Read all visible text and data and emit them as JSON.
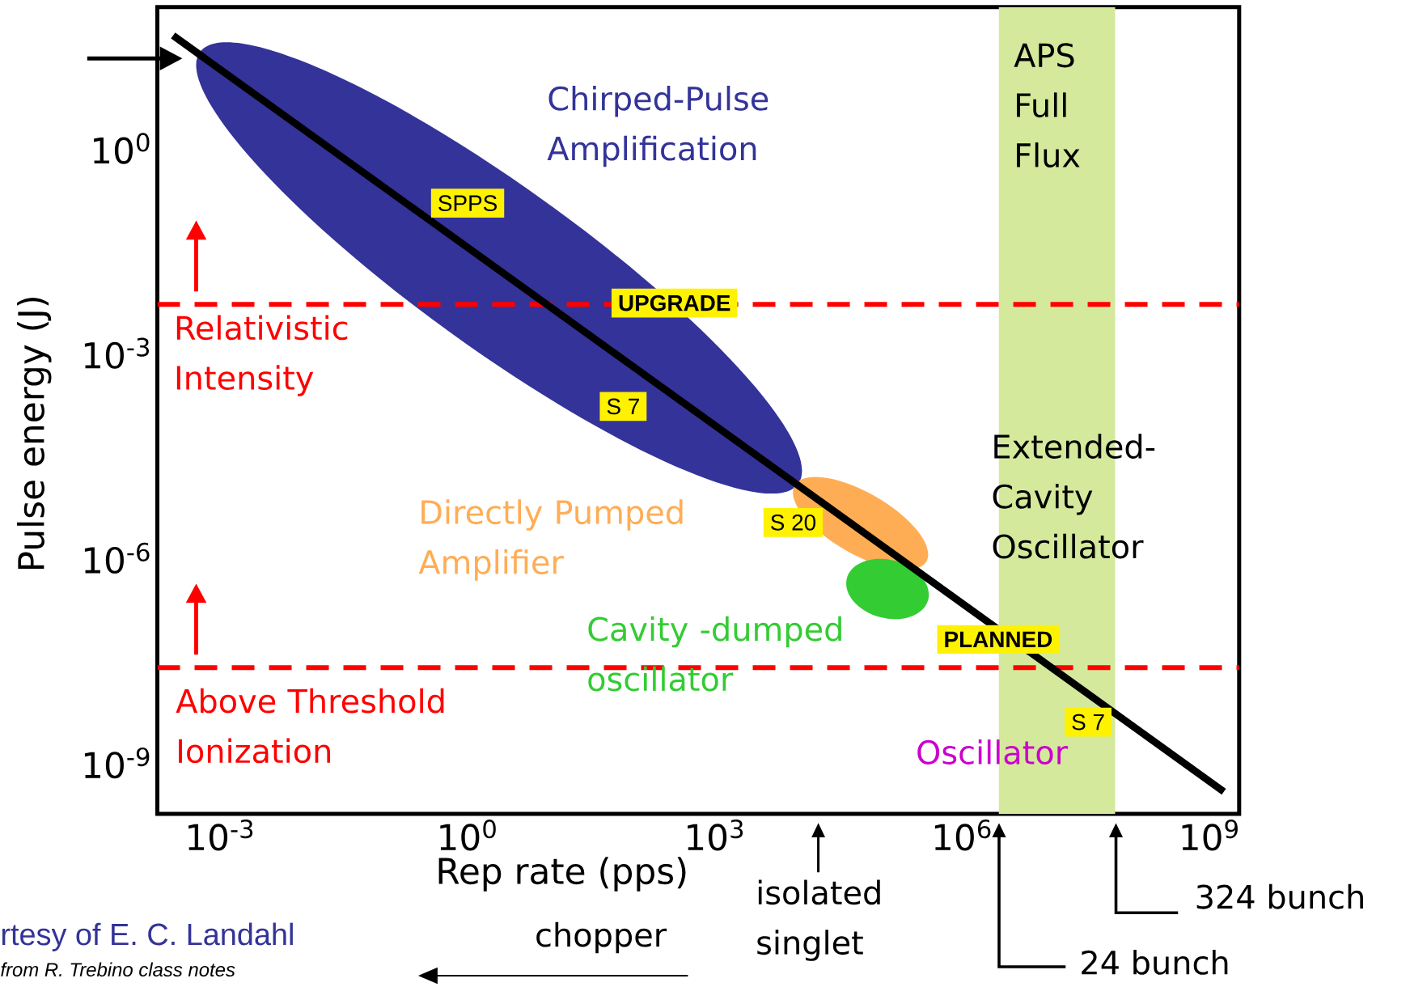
{
  "chart_data": {
    "type": "line",
    "xlabel": "Rep rate (pps)",
    "ylabel": "Pulse energy (J)",
    "xlim": [
      0.000174,
      2300000000
    ],
    "ylim": [
      1.8e-10,
      117
    ],
    "xticks": [
      {
        "value": 0.001,
        "label": "10$^{-3}$"
      },
      {
        "value": 1,
        "label": "10$^{0}$"
      },
      {
        "value": 1000,
        "label": "10$^{3}$"
      },
      {
        "value": 1000000,
        "label": "10$^{6}$"
      },
      {
        "value": 1000000000,
        "label": "10$^{9}$"
      }
    ],
    "yticks": [
      {
        "value": 1,
        "label": "10$^{0}$"
      },
      {
        "value": 0.001,
        "label": "10$^{-3}$"
      },
      {
        "value": 1e-06,
        "label": "10$^{-6}$"
      },
      {
        "value": 1e-09,
        "label": "10$^{-9}$"
      }
    ],
    "log": "xy",
    "series": [
      {
        "x": [
          0.00027,
          1500000000
        ],
        "values": [
          45,
          3.8e-10
        ],
        "color": "#000000"
      }
    ],
    "ref_lines": [
      {
        "axis": "y",
        "value": 0.0052,
        "color": "#ff0000",
        "line_style": "dashed"
      },
      {
        "axis": "y",
        "value": 2.5e-08,
        "color": "#ff0000",
        "line_style": "dashed"
      }
    ],
    "bands": [
      {
        "axis": "x",
        "from": 2800000,
        "to": 72000000,
        "label": "APS Full Flux",
        "color": "#d4e99c"
      }
    ],
    "annotations": [
      "Chirped-Pulse Amplification",
      "Directly Pumped Amplifier",
      "Cavity -dumped oscillator",
      "Extended-Cavity Oscillator",
      "Oscillator",
      "Relativistic Intensity",
      "Above Threshold Ionization",
      "SPPS",
      "UPGRADE",
      "S 7",
      "S 20",
      "PLANNED",
      "S 7",
      "isolated singlet",
      "24 bunch",
      "324 bunch",
      "chopper",
      "rtesy of E. C. Landahl",
      "from R. Trebino class notes"
    ]
  }
}
